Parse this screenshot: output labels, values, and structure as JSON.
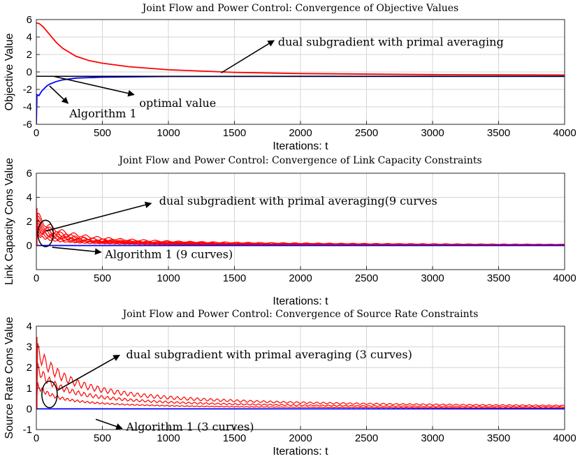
{
  "chart_data": [
    {
      "type": "line",
      "title": "Joint Flow and Power Control: Convergence of Objective Values",
      "xlabel": "Iterations: t",
      "ylabel": "Objective Value",
      "xlim": [
        0,
        4000
      ],
      "ylim": [
        -6,
        6
      ],
      "xticks": [
        "0",
        "500",
        "1000",
        "1500",
        "2000",
        "2500",
        "3000",
        "3500",
        "4000"
      ],
      "yticks": [
        "-6",
        "-4",
        "-2",
        "0",
        "2",
        "4",
        "6"
      ],
      "grid": true,
      "series": [
        {
          "color": "#ff0000",
          "x": [
            0,
            20,
            50,
            100,
            150,
            200,
            300,
            400,
            500,
            700,
            1000,
            1500,
            2000,
            3000,
            4000
          ],
          "y": [
            5.6,
            5.55,
            5.2,
            4.3,
            3.4,
            2.7,
            1.8,
            1.3,
            1.0,
            0.6,
            0.25,
            -0.05,
            -0.18,
            -0.3,
            -0.35
          ]
        },
        {
          "color": "#0000ff",
          "x": [
            0,
            5,
            20,
            40,
            60,
            80,
            100,
            150,
            200,
            300,
            500,
            1000,
            2000,
            4000
          ],
          "y": [
            -6,
            -2.6,
            -2.7,
            -2.2,
            -1.9,
            -1.6,
            -1.4,
            -1.1,
            -0.9,
            -0.7,
            -0.6,
            -0.52,
            -0.5,
            -0.5
          ]
        },
        {
          "color": "#000000",
          "x": [
            0,
            4000
          ],
          "y": [
            -0.5,
            -0.5
          ]
        }
      ],
      "annotations": [
        {
          "text": "dual subgradient with primal averaging",
          "from": [
            1400,
            -0.1
          ],
          "to": [
            1800,
            3.6
          ],
          "text_at": [
            1830,
            3.0
          ]
        },
        {
          "text": "optimal value",
          "from": [
            130,
            -0.5
          ],
          "to": [
            740,
            -2.6
          ],
          "text_at": [
            780,
            -4.0
          ]
        },
        {
          "text": "Algorithm 1",
          "from": [
            100,
            -1.6
          ],
          "to": [
            240,
            -3.6
          ],
          "text_at": [
            250,
            -5.2
          ]
        }
      ]
    },
    {
      "type": "line",
      "title": "Joint Flow and Power Control: Convergence of Link Capacity Constraints",
      "xlabel": "Iterations: t",
      "ylabel": "Link Capacity Cons Value",
      "xlim": [
        0,
        4000
      ],
      "ylim": [
        -2,
        6
      ],
      "xticks": [
        "0",
        "500",
        "1000",
        "1500",
        "2000",
        "2500",
        "3000",
        "3500",
        "4000"
      ],
      "yticks": [
        "0",
        "2",
        "4",
        "6"
      ],
      "grid": true,
      "series": [
        {
          "color": "#ff0000",
          "band": true,
          "curves": 9,
          "peak_range": [
            1.0,
            2.6
          ],
          "decay": 120,
          "x_end": 4000
        },
        {
          "color": "#0000ff",
          "x": [
            0,
            4000
          ],
          "y": [
            0,
            0
          ]
        }
      ],
      "annotations": [
        {
          "text": "dual subgradient with primal averaging(9 curves",
          "from": [
            70,
            1.2
          ],
          "to": [
            870,
            3.5
          ],
          "text_at": [
            930,
            3.4
          ],
          "ellipse": [
            70,
            1.0
          ]
        },
        {
          "text": "Algorithm 1 (9 curves)",
          "from": [
            120,
            -0.15
          ],
          "to": [
            490,
            -0.55
          ],
          "text_at": [
            520,
            -1.05
          ]
        }
      ]
    },
    {
      "type": "line",
      "title": "Joint Flow and Power Control: Convergence of Source Rate Constraints",
      "xlabel": "Iterations: t",
      "ylabel": "Source Rate Cons Value",
      "xlim": [
        0,
        4000
      ],
      "ylim": [
        -1,
        4
      ],
      "xticks": [
        "0",
        "500",
        "1000",
        "1500",
        "2000",
        "2500",
        "3000",
        "3500",
        "4000"
      ],
      "yticks": [
        "-1",
        "0",
        "1",
        "2",
        "3",
        "4"
      ],
      "grid": true,
      "series": [
        {
          "color": "#ff0000",
          "band": true,
          "curves": 3,
          "peak_range": [
            1.2,
            2.9
          ],
          "decay": 180,
          "x_end": 4000
        },
        {
          "color": "#0000ff",
          "x": [
            0,
            4000
          ],
          "y": [
            0,
            0
          ]
        }
      ],
      "annotations": [
        {
          "text": "dual subgradient with primal averaging (3 curves)",
          "from": [
            160,
            0.9
          ],
          "to": [
            630,
            2.6
          ],
          "text_at": [
            680,
            2.45
          ]
        },
        {
          "text": "Algorithm 1 (3 curves)",
          "from": [
            450,
            -0.5
          ],
          "to": [
            650,
            -0.95
          ],
          "text_at": [
            680,
            -1.05
          ],
          "ellipse": [
            100,
            0.7
          ]
        }
      ]
    }
  ]
}
